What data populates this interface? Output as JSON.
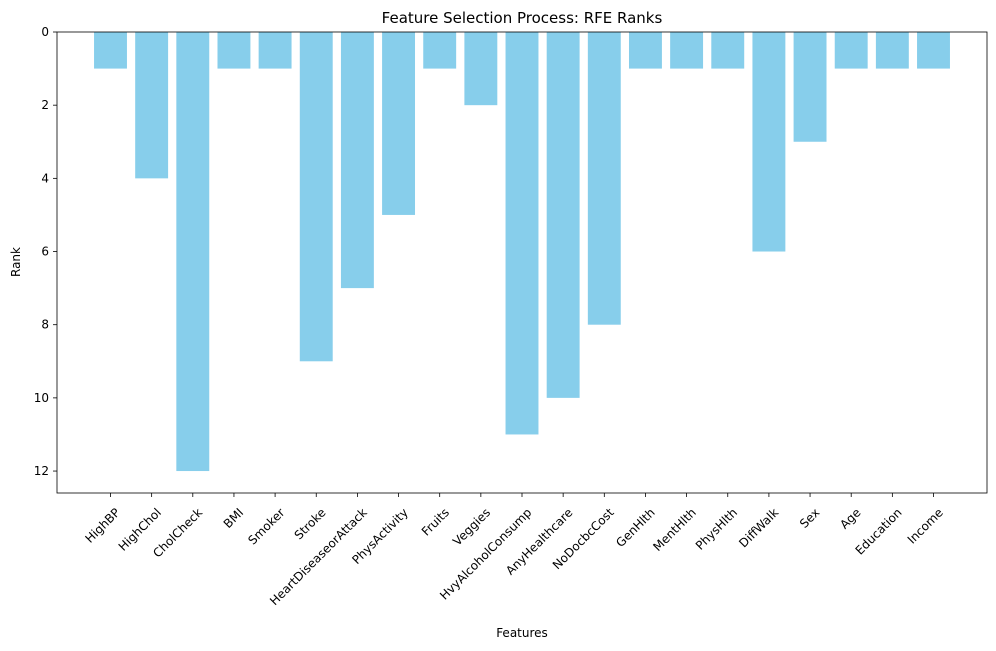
{
  "chart_data": {
    "type": "bar",
    "title": "Feature Selection Process: RFE Ranks",
    "xlabel": "Features",
    "ylabel": "Rank",
    "categories": [
      "HighBP",
      "HighChol",
      "CholCheck",
      "BMI",
      "Smoker",
      "Stroke",
      "HeartDiseaseorAttack",
      "PhysActivity",
      "Fruits",
      "Veggies",
      "HvyAlcoholConsump",
      "AnyHealthcare",
      "NoDocbcCost",
      "GenHlth",
      "MentHlth",
      "PhysHlth",
      "DiffWalk",
      "Sex",
      "Age",
      "Education",
      "Income"
    ],
    "values": [
      1,
      4,
      12,
      1,
      1,
      9,
      7,
      5,
      1,
      2,
      11,
      10,
      8,
      1,
      1,
      1,
      6,
      3,
      1,
      1,
      1
    ],
    "ylim": [
      0,
      12.6
    ],
    "y_inverted": true,
    "yticks": [
      0,
      2,
      4,
      6,
      8,
      10,
      12
    ],
    "x_tick_rotation": 45,
    "grid": false,
    "legend": "none",
    "bar_color": "#87ceeb"
  }
}
